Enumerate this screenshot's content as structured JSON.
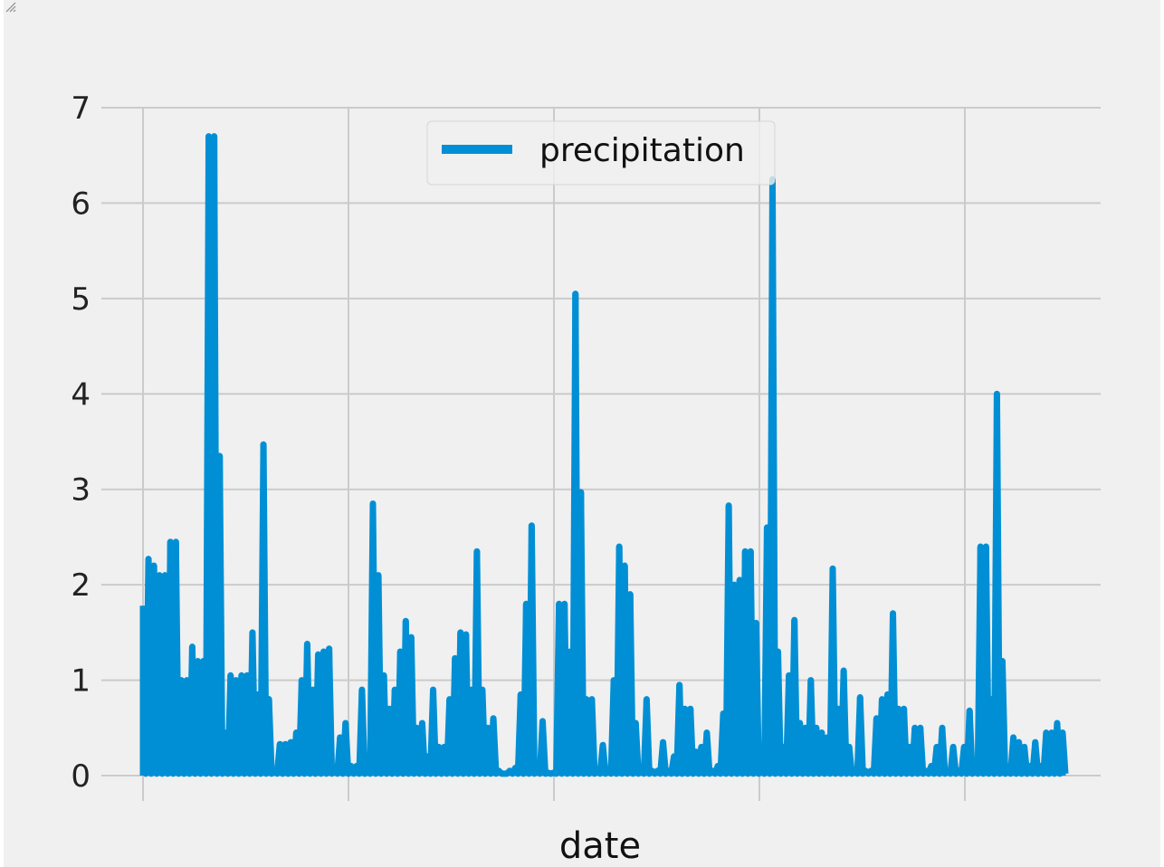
{
  "chart_data": {
    "type": "line",
    "xlabel": "date",
    "ylabel": "",
    "ylim": [
      -0.2,
      7.1
    ],
    "yticks": [
      "0",
      "1",
      "2",
      "3",
      "4",
      "5",
      "6",
      "7"
    ],
    "xticks_count": 5,
    "grid": true,
    "legend_position": "top-center",
    "colors": {
      "series": "#008fd5",
      "background": "#f0f0f0",
      "grid": "#cbcbcb"
    },
    "series": [
      {
        "name": "precipitation",
        "values": [
          1.78,
          2.27,
          2.2,
          2.1,
          2.1,
          2.45,
          2.45,
          1.0,
          1.0,
          1.35,
          1.2,
          1.2,
          6.7,
          6.7,
          3.35,
          0.45,
          1.05,
          1.0,
          1.05,
          1.05,
          1.5,
          0.85,
          3.47,
          0.8,
          0.05,
          0.33,
          0.33,
          0.35,
          0.45,
          1.0,
          1.38,
          0.9,
          1.27,
          1.3,
          1.33,
          0.05,
          0.4,
          0.55,
          0.1,
          0.1,
          0.9,
          0.2,
          2.85,
          2.1,
          1.05,
          0.7,
          0.9,
          1.3,
          1.62,
          1.45,
          0.5,
          0.55,
          0.2,
          0.9,
          0.3,
          0.3,
          0.8,
          1.23,
          1.5,
          1.48,
          0.9,
          2.35,
          0.9,
          0.5,
          0.6,
          0.05,
          0.02,
          0.05,
          0.08,
          0.85,
          1.8,
          2.62,
          0.05,
          0.57,
          0.03,
          0.03,
          1.8,
          1.8,
          1.3,
          5.05,
          2.97,
          0.8,
          0.8,
          0.05,
          0.32,
          0.05,
          1.0,
          2.4,
          2.2,
          1.9,
          0.55,
          0.05,
          0.8,
          0.05,
          0.05,
          0.35,
          0.05,
          0.2,
          0.95,
          0.7,
          0.7,
          0.25,
          0.3,
          0.45,
          0.05,
          0.1,
          0.65,
          2.83,
          2.0,
          2.05,
          2.35,
          2.35,
          1.6,
          0.3,
          2.6,
          6.25,
          1.3,
          0.3,
          1.05,
          1.63,
          0.55,
          0.5,
          1.0,
          0.5,
          0.45,
          0.4,
          2.17,
          0.7,
          1.1,
          0.3,
          0.05,
          0.82,
          0.05,
          0.05,
          0.6,
          0.8,
          0.85,
          1.7,
          0.7,
          0.7,
          0.3,
          0.5,
          0.5,
          0.05,
          0.1,
          0.3,
          0.5,
          0.05,
          0.3,
          0.05,
          0.3,
          0.68,
          0.05,
          2.4,
          2.4,
          0.8,
          4.0,
          1.2,
          0.1,
          0.4,
          0.35,
          0.3,
          0.1,
          0.35,
          0.1,
          0.45,
          0.45,
          0.55,
          0.45
        ]
      }
    ]
  }
}
